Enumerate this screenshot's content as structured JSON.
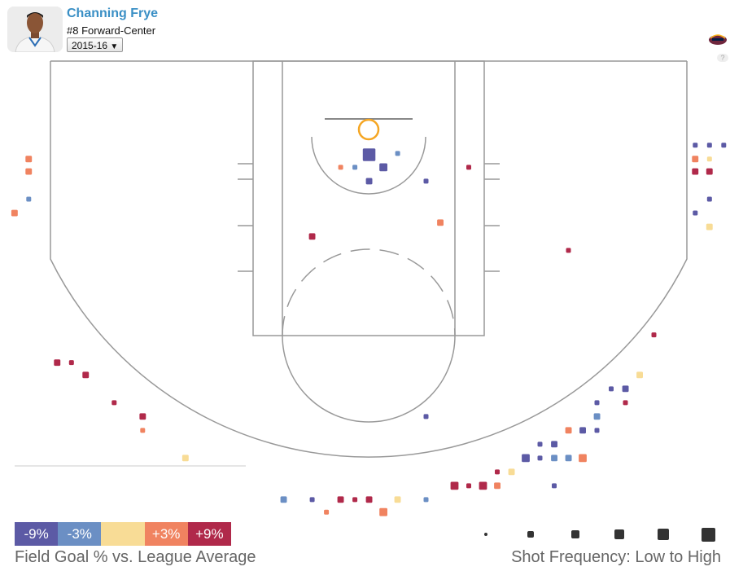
{
  "header": {
    "player_name": "Channing Frye",
    "player_position": "#8 Forward-Center",
    "season_selected": "2015-16",
    "season_arrow": "▼",
    "help_label": "?"
  },
  "colors": {
    "m9": "#5c5aa5",
    "m3": "#6b8fc4",
    "zero": "#f8dc96",
    "p3": "#f08360",
    "p9": "#b0294a"
  },
  "legend": {
    "cells": [
      {
        "label": "-9%",
        "color": "#5c5aa5"
      },
      {
        "label": "-3%",
        "color": "#6b8fc4"
      },
      {
        "label": "",
        "color": "#f8dc96"
      },
      {
        "label": "+3%",
        "color": "#f08360"
      },
      {
        "label": "+9%",
        "color": "#b0294a"
      }
    ],
    "title": "Field Goal % vs. League Average",
    "frequency_title": "Shot Frequency: Low to High",
    "frequency_levels": [
      1,
      2,
      3,
      4,
      5,
      6
    ]
  },
  "chart_data": {
    "type": "scatter",
    "title": "",
    "xlabel": "",
    "ylabel": "",
    "note": "court coordinates in feet; x from left sideline, y from baseline",
    "xlim": [
      0,
      50
    ],
    "ylim": [
      0,
      35
    ],
    "points": [
      {
        "x": 1.0,
        "y": 4.6,
        "freq": 2,
        "fg": "p3"
      },
      {
        "x": 1.0,
        "y": 5.5,
        "freq": 2,
        "fg": "p3"
      },
      {
        "x": 1.0,
        "y": 7.5,
        "freq": 1,
        "fg": "m3"
      },
      {
        "x": 0.0,
        "y": 8.5,
        "freq": 2,
        "fg": "p3"
      },
      {
        "x": 47.8,
        "y": 3.6,
        "freq": 1,
        "fg": "m9"
      },
      {
        "x": 48.8,
        "y": 3.6,
        "freq": 1,
        "fg": "m9"
      },
      {
        "x": 49.8,
        "y": 3.6,
        "freq": 1,
        "fg": "m9"
      },
      {
        "x": 47.8,
        "y": 4.6,
        "freq": 2,
        "fg": "p3"
      },
      {
        "x": 48.8,
        "y": 4.6,
        "freq": 1,
        "fg": "zero"
      },
      {
        "x": 47.8,
        "y": 5.5,
        "freq": 2,
        "fg": "p9"
      },
      {
        "x": 48.8,
        "y": 5.5,
        "freq": 2,
        "fg": "p9"
      },
      {
        "x": 48.8,
        "y": 7.5,
        "freq": 1,
        "fg": "m9"
      },
      {
        "x": 47.8,
        "y": 8.5,
        "freq": 1,
        "fg": "m9"
      },
      {
        "x": 48.8,
        "y": 9.5,
        "freq": 2,
        "fg": "zero"
      },
      {
        "x": 24.9,
        "y": 4.3,
        "freq": 6,
        "fg": "m9"
      },
      {
        "x": 25.9,
        "y": 5.2,
        "freq": 3,
        "fg": "m9"
      },
      {
        "x": 24.9,
        "y": 6.2,
        "freq": 2,
        "fg": "m9"
      },
      {
        "x": 23.9,
        "y": 5.2,
        "freq": 1,
        "fg": "m3"
      },
      {
        "x": 22.9,
        "y": 5.2,
        "freq": 1,
        "fg": "p3"
      },
      {
        "x": 26.9,
        "y": 4.2,
        "freq": 1,
        "fg": "m3"
      },
      {
        "x": 28.9,
        "y": 6.2,
        "freq": 1,
        "fg": "m9"
      },
      {
        "x": 31.9,
        "y": 5.2,
        "freq": 1,
        "fg": "p9"
      },
      {
        "x": 29.9,
        "y": 9.2,
        "freq": 2,
        "fg": "p3"
      },
      {
        "x": 20.9,
        "y": 10.2,
        "freq": 2,
        "fg": "p9"
      },
      {
        "x": 38.9,
        "y": 11.2,
        "freq": 1,
        "fg": "p9"
      },
      {
        "x": 44.9,
        "y": 17.3,
        "freq": 1,
        "fg": "p9"
      },
      {
        "x": 43.9,
        "y": 20.2,
        "freq": 2,
        "fg": "zero"
      },
      {
        "x": 42.9,
        "y": 21.2,
        "freq": 2,
        "fg": "m9"
      },
      {
        "x": 41.9,
        "y": 21.2,
        "freq": 1,
        "fg": "m9"
      },
      {
        "x": 40.9,
        "y": 22.2,
        "freq": 1,
        "fg": "m9"
      },
      {
        "x": 42.9,
        "y": 22.2,
        "freq": 1,
        "fg": "p9"
      },
      {
        "x": 40.9,
        "y": 23.2,
        "freq": 2,
        "fg": "m3"
      },
      {
        "x": 38.9,
        "y": 24.2,
        "freq": 2,
        "fg": "p3"
      },
      {
        "x": 39.9,
        "y": 24.2,
        "freq": 2,
        "fg": "m9"
      },
      {
        "x": 40.9,
        "y": 24.2,
        "freq": 1,
        "fg": "m9"
      },
      {
        "x": 36.9,
        "y": 25.2,
        "freq": 1,
        "fg": "m9"
      },
      {
        "x": 37.9,
        "y": 25.2,
        "freq": 2,
        "fg": "m9"
      },
      {
        "x": 35.9,
        "y": 26.2,
        "freq": 3,
        "fg": "m9"
      },
      {
        "x": 36.9,
        "y": 26.2,
        "freq": 1,
        "fg": "m9"
      },
      {
        "x": 37.9,
        "y": 26.2,
        "freq": 2,
        "fg": "m3"
      },
      {
        "x": 38.9,
        "y": 26.2,
        "freq": 2,
        "fg": "m3"
      },
      {
        "x": 39.9,
        "y": 26.2,
        "freq": 3,
        "fg": "p3"
      },
      {
        "x": 34.9,
        "y": 27.2,
        "freq": 2,
        "fg": "zero"
      },
      {
        "x": 33.9,
        "y": 27.2,
        "freq": 1,
        "fg": "p9"
      },
      {
        "x": 30.9,
        "y": 28.2,
        "freq": 3,
        "fg": "p9"
      },
      {
        "x": 31.9,
        "y": 28.2,
        "freq": 1,
        "fg": "p9"
      },
      {
        "x": 32.9,
        "y": 28.2,
        "freq": 3,
        "fg": "p9"
      },
      {
        "x": 33.9,
        "y": 28.2,
        "freq": 2,
        "fg": "p3"
      },
      {
        "x": 37.9,
        "y": 28.2,
        "freq": 1,
        "fg": "m9"
      },
      {
        "x": 28.9,
        "y": 23.2,
        "freq": 1,
        "fg": "m9"
      },
      {
        "x": 3.0,
        "y": 19.3,
        "freq": 2,
        "fg": "p9"
      },
      {
        "x": 4.0,
        "y": 19.3,
        "freq": 1,
        "fg": "p9"
      },
      {
        "x": 5.0,
        "y": 20.2,
        "freq": 2,
        "fg": "p9"
      },
      {
        "x": 7.0,
        "y": 22.2,
        "freq": 1,
        "fg": "p9"
      },
      {
        "x": 9.0,
        "y": 23.2,
        "freq": 2,
        "fg": "p9"
      },
      {
        "x": 9.0,
        "y": 24.2,
        "freq": 1,
        "fg": "p3"
      },
      {
        "x": 12.0,
        "y": 26.2,
        "freq": 2,
        "fg": "zero"
      },
      {
        "x": 18.9,
        "y": 29.2,
        "freq": 2,
        "fg": "m3"
      },
      {
        "x": 20.9,
        "y": 29.2,
        "freq": 1,
        "fg": "m9"
      },
      {
        "x": 22.9,
        "y": 29.2,
        "freq": 2,
        "fg": "p9"
      },
      {
        "x": 23.9,
        "y": 29.2,
        "freq": 1,
        "fg": "p9"
      },
      {
        "x": 24.9,
        "y": 29.2,
        "freq": 2,
        "fg": "p9"
      },
      {
        "x": 26.9,
        "y": 29.2,
        "freq": 2,
        "fg": "zero"
      },
      {
        "x": 28.9,
        "y": 29.2,
        "freq": 1,
        "fg": "m3"
      },
      {
        "x": 21.9,
        "y": 30.1,
        "freq": 1,
        "fg": "p3"
      },
      {
        "x": 25.9,
        "y": 30.1,
        "freq": 3,
        "fg": "p3"
      }
    ]
  }
}
